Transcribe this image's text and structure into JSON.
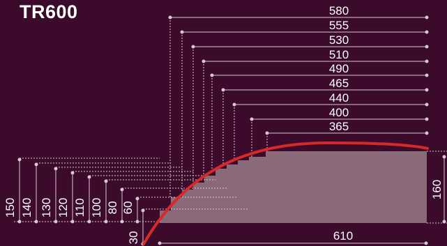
{
  "title": "TR600",
  "colors": {
    "background": "#3c0a2b",
    "step_fill": "#8a6a78",
    "curve": "#d42a2a",
    "dimension_line": "#d8c8d0",
    "text": "#ffffff"
  },
  "dimensions": {
    "widths": [
      "580",
      "555",
      "530",
      "510",
      "490",
      "465",
      "440",
      "400",
      "365"
    ],
    "heights": [
      "150",
      "140",
      "130",
      "120",
      "110",
      "100",
      "80",
      "60",
      "30"
    ],
    "total_width": "610",
    "total_height": "160"
  }
}
